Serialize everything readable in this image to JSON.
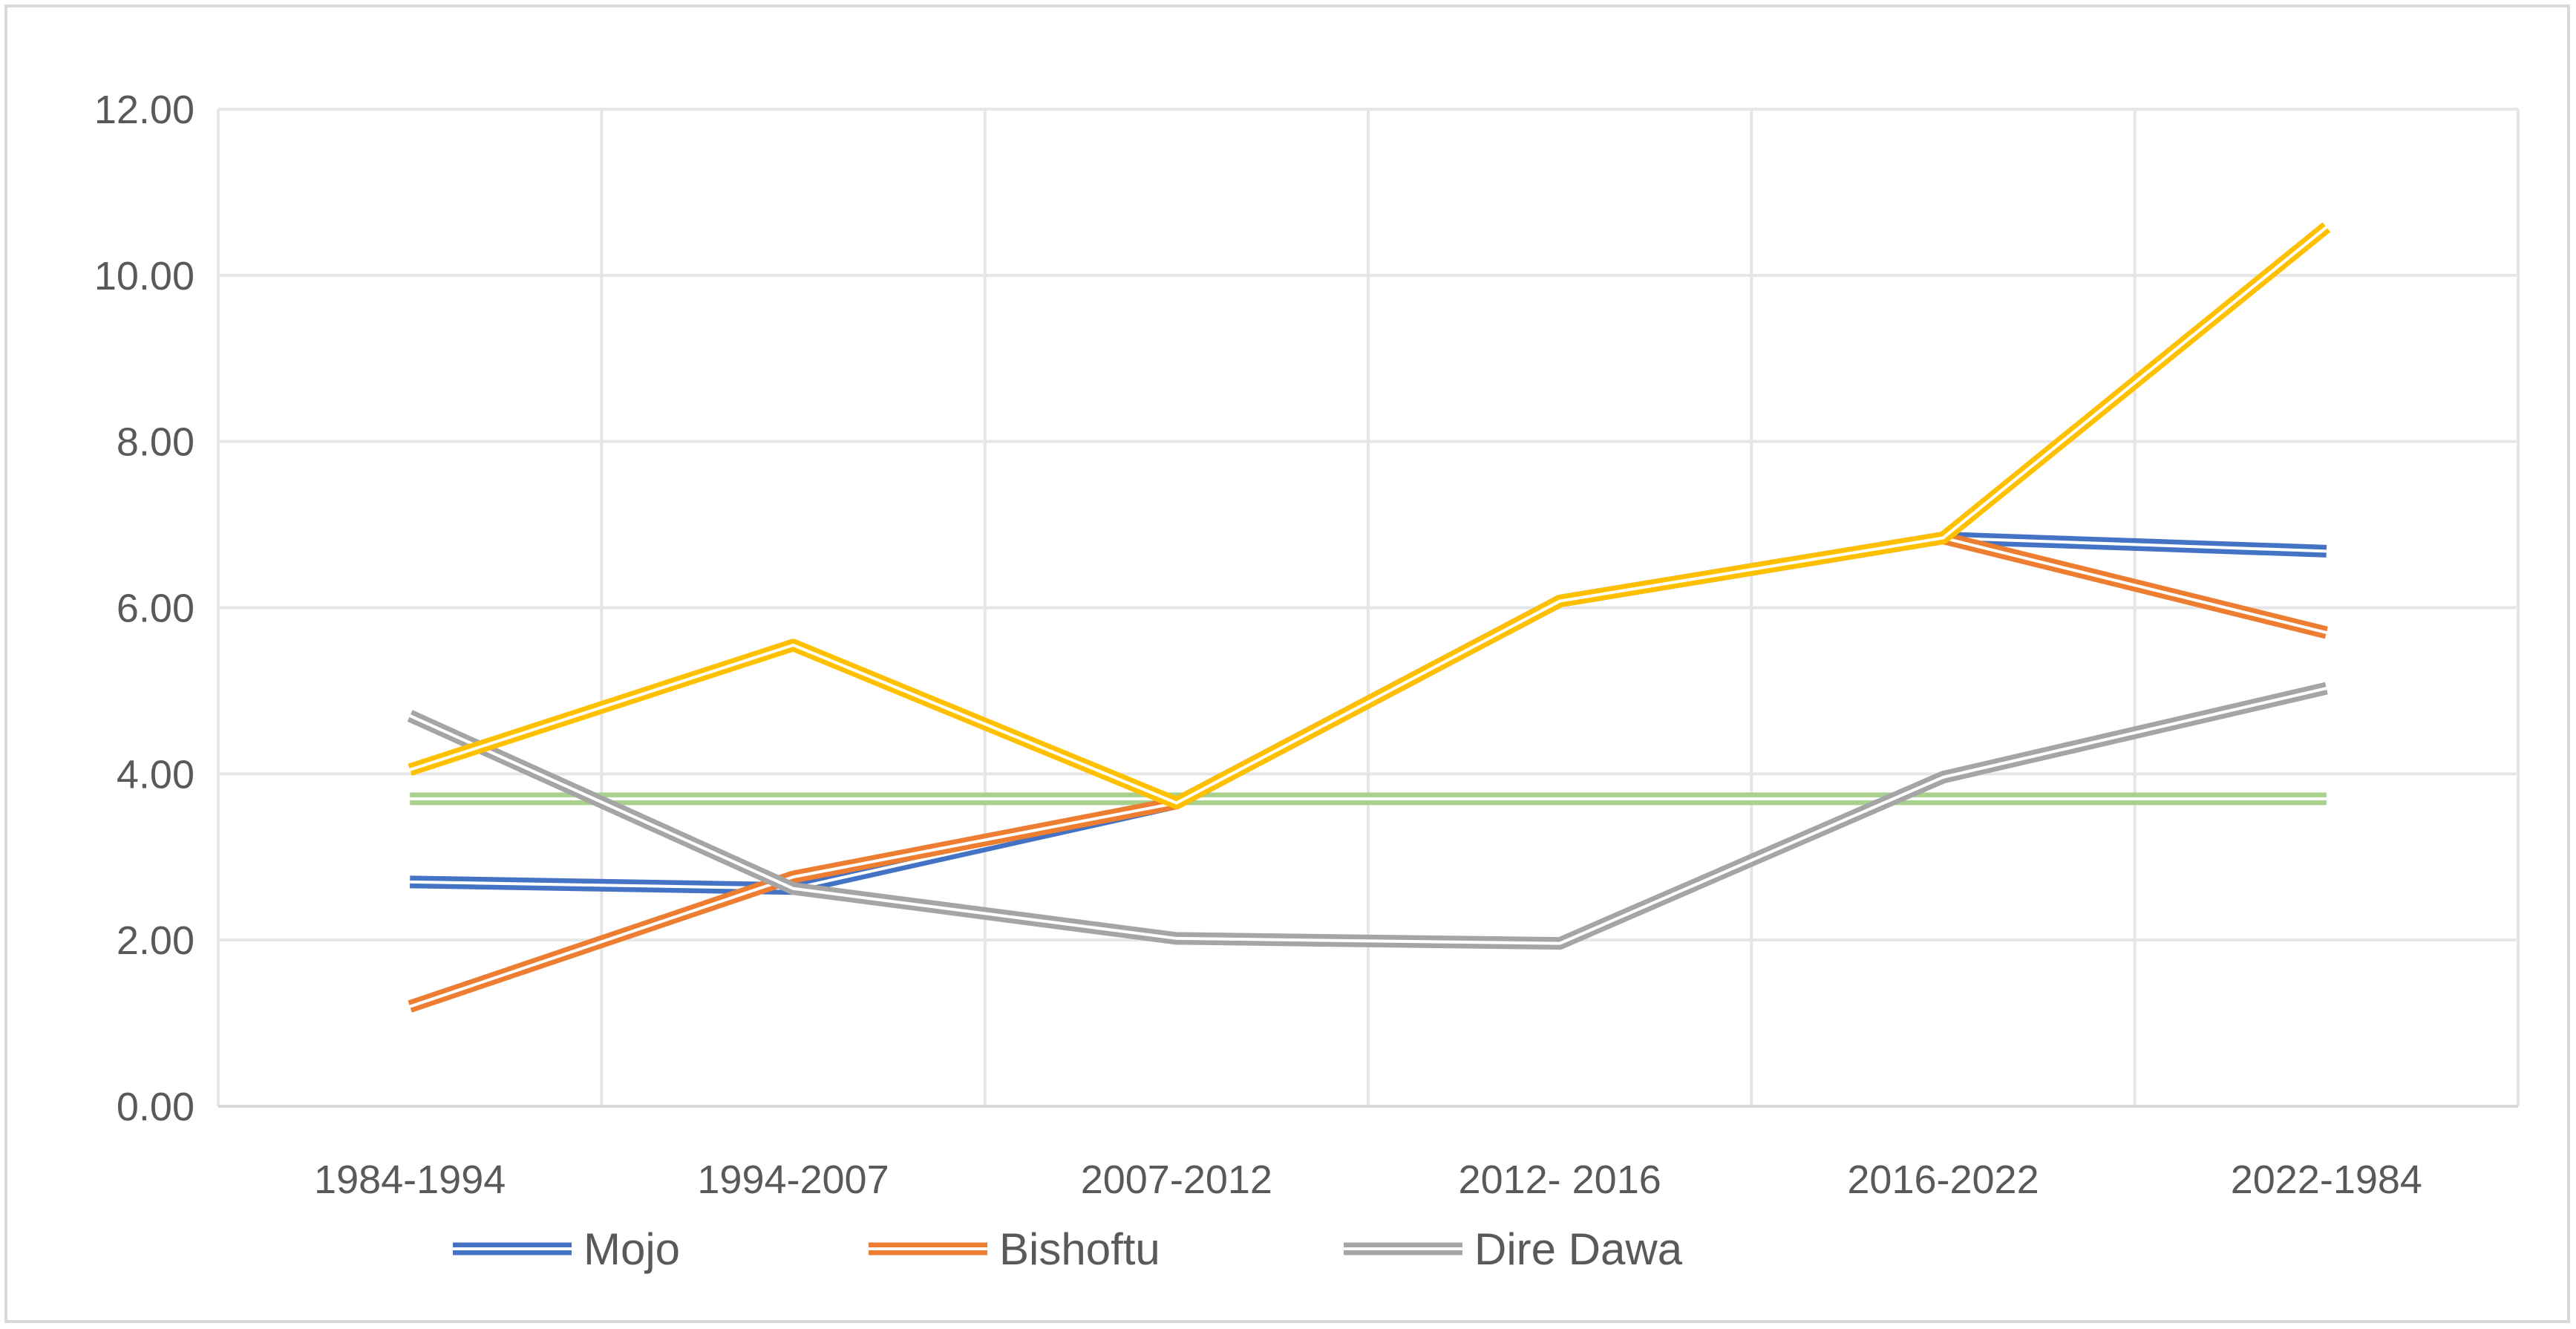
{
  "chart_data": {
    "type": "line",
    "title": "",
    "xlabel": "",
    "ylabel": "",
    "categories": [
      "1984-1994",
      "1994-2007",
      "2007-2012",
      "2012- 2016",
      "2016-2022",
      "2022-1984"
    ],
    "ylim": [
      0,
      12
    ],
    "ytick_labels": [
      "0.00",
      "2.00",
      "4.00",
      "6.00",
      "8.00",
      "10.00",
      "12.00"
    ],
    "grid": true,
    "legend_position": "bottom",
    "series": [
      {
        "name": "Mojo",
        "values": [
          2.7,
          2.62,
          3.65,
          6.08,
          6.84,
          6.68
        ],
        "color": "#4472c4",
        "legend": true
      },
      {
        "name": "Bishoftu",
        "values": [
          1.2,
          2.76,
          3.65,
          6.08,
          6.84,
          5.7
        ],
        "color": "#ed7d31",
        "legend": true
      },
      {
        "name": "Dire Dawa",
        "values": [
          4.7,
          2.62,
          2.02,
          1.96,
          3.96,
          5.03
        ],
        "color": "#a5a5a5",
        "legend": true
      },
      {
        "values": [
          4.05,
          5.55,
          3.65,
          6.08,
          6.84,
          10.58
        ],
        "color": "#ffc000",
        "legend": false
      },
      {
        "values": [
          3.7,
          3.7,
          3.7,
          3.7,
          3.7,
          3.7
        ],
        "color": "#a9d18e",
        "legend": false
      }
    ]
  }
}
